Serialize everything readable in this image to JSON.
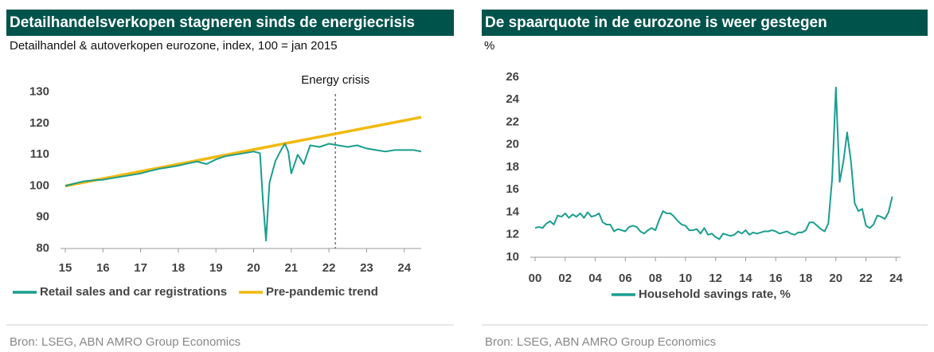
{
  "chart_data": [
    {
      "type": "line",
      "title": "Detailhandelsverkopen stagneren sinds de energiecrisis",
      "subtitle": "Detailhandel & autoverkopen eurozone, index, 100 = jan 2015",
      "source": "Bron: LSEG, ABN AMRO Group Economics",
      "x": [
        15,
        15.25,
        15.5,
        15.75,
        16,
        16.25,
        16.5,
        16.75,
        17,
        17.25,
        17.5,
        17.75,
        18,
        18.25,
        18.5,
        18.75,
        19,
        19.25,
        19.5,
        19.75,
        20,
        20.17,
        20.25,
        20.33,
        20.42,
        20.58,
        20.75,
        20.83,
        20.92,
        21,
        21.17,
        21.33,
        21.5,
        21.75,
        22,
        22.25,
        22.5,
        22.75,
        23,
        23.25,
        23.5,
        23.75,
        24,
        24.25,
        24.45
      ],
      "series": [
        {
          "name": "Retail sales and car registrations",
          "color": "#1a9e8f",
          "values": [
            100,
            100.8,
            101.5,
            101.8,
            102,
            102.5,
            103,
            103.5,
            104,
            104.8,
            105.5,
            106,
            106.5,
            107.2,
            107.8,
            107,
            108.5,
            109.5,
            110,
            110.5,
            111,
            110.5,
            95,
            82.5,
            101,
            108,
            112,
            113.5,
            111,
            104,
            110,
            107,
            113,
            112.5,
            113.5,
            113,
            112.5,
            113,
            112,
            111.5,
            111,
            111.5,
            111.5,
            111.5,
            111
          ]
        },
        {
          "name": "Pre-pandemic trend",
          "color": "#f2b90f",
          "x": [
            15,
            24.45
          ],
          "values": [
            100,
            122
          ]
        }
      ],
      "annotations": [
        {
          "text": "Energy crisis",
          "x": 22.17
        }
      ],
      "xlim": [
        15,
        24.45
      ],
      "xticks": [
        15,
        16,
        17,
        18,
        19,
        20,
        21,
        22,
        23,
        24
      ],
      "ylim": [
        80,
        133
      ],
      "yticks": [
        80,
        90,
        100,
        110,
        120,
        130
      ],
      "legend": "bottom"
    },
    {
      "type": "line",
      "title": "De spaarquote in de eurozone is weer gestegen",
      "y_label": "%",
      "source": "Bron: LSEG, ABN AMRO Group Economics",
      "x": [
        0,
        0.25,
        0.5,
        0.75,
        1,
        1.25,
        1.5,
        1.75,
        2,
        2.25,
        2.5,
        2.75,
        3,
        3.25,
        3.5,
        3.75,
        4,
        4.25,
        4.5,
        4.75,
        5,
        5.25,
        5.5,
        5.75,
        6,
        6.25,
        6.5,
        6.75,
        7,
        7.25,
        7.5,
        7.75,
        8,
        8.25,
        8.5,
        8.75,
        9,
        9.25,
        9.5,
        9.75,
        10,
        10.25,
        10.5,
        10.75,
        11,
        11.25,
        11.5,
        11.75,
        12,
        12.25,
        12.5,
        12.75,
        13,
        13.25,
        13.5,
        13.75,
        14,
        14.25,
        14.5,
        14.75,
        15,
        15.25,
        15.5,
        15.75,
        16,
        16.25,
        16.5,
        16.75,
        17,
        17.25,
        17.5,
        17.75,
        18,
        18.25,
        18.5,
        18.75,
        19,
        19.25,
        19.5,
        19.75,
        20,
        20.25,
        20.5,
        20.75,
        21,
        21.25,
        21.5,
        21.75,
        22,
        22.25,
        22.5,
        22.75,
        23,
        23.25,
        23.5,
        23.75
      ],
      "series": [
        {
          "name": "Household savings rate, %",
          "color": "#1a9e8f",
          "values": [
            12.6,
            12.7,
            12.6,
            13,
            13.2,
            12.9,
            13.7,
            13.6,
            13.9,
            13.5,
            13.8,
            13.6,
            13.9,
            13.5,
            14,
            13.6,
            13.7,
            13.9,
            13.1,
            12.9,
            12.9,
            12.3,
            12.5,
            12.4,
            12.3,
            12.7,
            12.8,
            12.7,
            12.3,
            12.1,
            12.4,
            12.6,
            12.4,
            13.3,
            14.1,
            13.9,
            13.9,
            13.6,
            13.2,
            12.9,
            12.8,
            12.4,
            12.4,
            12.5,
            12.1,
            12.6,
            12,
            12.1,
            11.8,
            11.6,
            12.1,
            12,
            11.9,
            12,
            12.3,
            12.1,
            12.4,
            12,
            12.2,
            12.1,
            12.2,
            12.3,
            12.3,
            12.4,
            12.3,
            12.1,
            12.2,
            12.3,
            12.1,
            12,
            12.2,
            12.2,
            12.4,
            13.1,
            13.1,
            12.8,
            12.5,
            12.3,
            13,
            17,
            25.1,
            16.7,
            18.5,
            21.1,
            18.5,
            14.8,
            14.1,
            14.3,
            12.8,
            12.6,
            12.9,
            13.7,
            13.6,
            13.4,
            14,
            15.4
          ]
        }
      ],
      "xlim": [
        0,
        24.3
      ],
      "xticks": [
        {
          "value": 0,
          "label": "00"
        },
        {
          "value": 2,
          "label": "02"
        },
        {
          "value": 4,
          "label": "04"
        },
        {
          "value": 6,
          "label": "06"
        },
        {
          "value": 8,
          "label": "08"
        },
        10,
        12,
        14,
        16,
        18,
        20,
        22,
        24
      ],
      "ylim": [
        10,
        26
      ],
      "yticks": [
        10,
        12,
        14,
        16,
        18,
        20,
        22,
        24,
        26
      ],
      "legend": "bottom"
    }
  ]
}
